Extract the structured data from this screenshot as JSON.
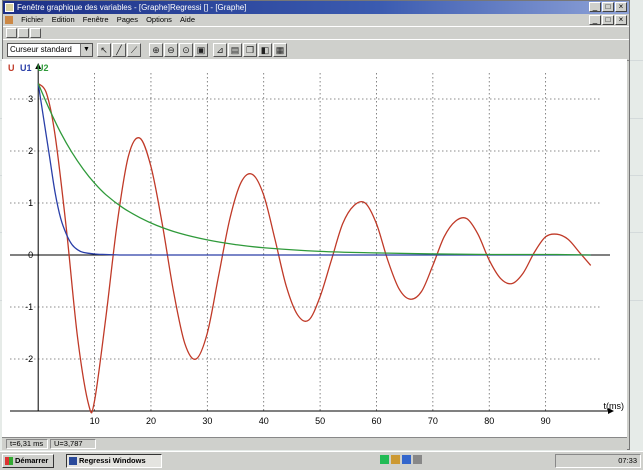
{
  "window": {
    "title": "Fenêtre graphique des variables - [Graphe]Regressi [] - [Graphe]",
    "menu": [
      "Fichier",
      "Edition",
      "Fenêtre",
      "Pages",
      "Options",
      "Aide"
    ]
  },
  "toolbar": {
    "cursor_mode": "Curseur standard",
    "icons": [
      "cursor-select-icon",
      "line-tool-icon",
      "tangent-icon",
      "zoom-in-icon",
      "zoom-out-icon",
      "zoom-fit-icon",
      "zoom-window-icon",
      "axis-icon",
      "print-icon",
      "copy-icon",
      "options-icon"
    ]
  },
  "legend": [
    {
      "name": "U",
      "color": "#c03a28"
    },
    {
      "name": "U1",
      "color": "#2a3fa8"
    },
    {
      "name": "U2",
      "color": "#2f9a3a"
    }
  ],
  "status": {
    "time_readout": "t=6,31 ms",
    "value_readout": "U=3,787"
  },
  "taskbar": {
    "start": "Démarrer",
    "task": "Regressi Windows",
    "clock": "07:33"
  },
  "chart_data": {
    "type": "line",
    "xlabel": "t(ms)",
    "ylabel": "",
    "xlim": [
      -5,
      100
    ],
    "ylim": [
      -3,
      3.5
    ],
    "x_ticks": [
      10,
      20,
      30,
      40,
      50,
      60,
      70,
      80,
      90
    ],
    "y_ticks": [
      3,
      2,
      1,
      0,
      -1,
      -2
    ],
    "grid": true,
    "series": [
      {
        "name": "U",
        "color": "#c03a28",
        "x": [
          0,
          1.5,
          3,
          5,
          7,
          9,
          10,
          12,
          14,
          16,
          18,
          20,
          22,
          24,
          26,
          28,
          30,
          32,
          34,
          36,
          38,
          40,
          42,
          44,
          46,
          48,
          50,
          52,
          54,
          56,
          58,
          60,
          62,
          64,
          66,
          68,
          70,
          72,
          74,
          76,
          78,
          80,
          82,
          84,
          86,
          88,
          90,
          92,
          94,
          96,
          98
        ],
        "y": [
          3.3,
          3.1,
          2.3,
          0.5,
          -1.6,
          -2.9,
          -2.8,
          -1.2,
          0.6,
          1.9,
          2.25,
          1.7,
          0.6,
          -0.7,
          -1.7,
          -2.0,
          -1.5,
          -0.4,
          0.7,
          1.4,
          1.55,
          1.15,
          0.3,
          -0.6,
          -1.15,
          -1.25,
          -0.8,
          -0.1,
          0.6,
          0.95,
          1.0,
          0.6,
          -0.1,
          -0.65,
          -0.85,
          -0.7,
          -0.2,
          0.35,
          0.65,
          0.7,
          0.4,
          -0.1,
          -0.45,
          -0.55,
          -0.35,
          0.05,
          0.35,
          0.4,
          0.3,
          0.05,
          -0.2
        ]
      },
      {
        "name": "U1",
        "color": "#2a3fa8",
        "x": [
          0,
          1,
          2,
          3,
          4,
          5,
          6,
          7,
          8,
          10,
          12,
          15,
          20,
          30,
          50,
          98
        ],
        "y": [
          3.3,
          2.6,
          1.9,
          1.2,
          0.7,
          0.4,
          0.2,
          0.1,
          0.05,
          0.02,
          0.01,
          0,
          0,
          0,
          0,
          0
        ]
      },
      {
        "name": "U2",
        "color": "#2f9a3a",
        "x": [
          0,
          2,
          4,
          6,
          8,
          10,
          12,
          15,
          18,
          21,
          25,
          30,
          35,
          40,
          50,
          60,
          70,
          80,
          90,
          98
        ],
        "y": [
          3.3,
          2.8,
          2.35,
          1.97,
          1.65,
          1.38,
          1.16,
          0.91,
          0.72,
          0.57,
          0.42,
          0.29,
          0.2,
          0.14,
          0.07,
          0.04,
          0.02,
          0.01,
          0.01,
          0.0
        ]
      }
    ]
  }
}
